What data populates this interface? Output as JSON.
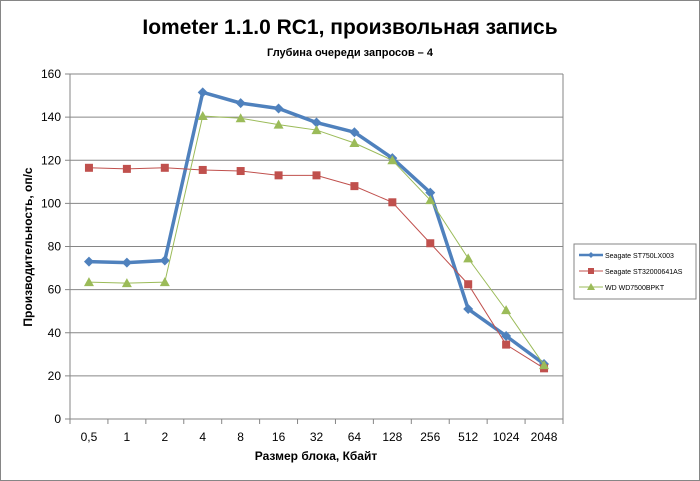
{
  "chart_data": {
    "type": "line",
    "title": "Iometer 1.1.0 RC1, произвольная запись",
    "subtitle": "Глубина очереди запросов – 4",
    "xlabel": "Размер блока, Кбайт",
    "ylabel": "Производительность, оп/с",
    "categories": [
      "0,5",
      "1",
      "2",
      "4",
      "8",
      "16",
      "32",
      "64",
      "128",
      "256",
      "512",
      "1024",
      "2048"
    ],
    "ylim": [
      0,
      160
    ],
    "yticks": [
      0,
      20,
      40,
      60,
      80,
      100,
      120,
      140,
      160
    ],
    "grid": true,
    "legend_position": "right",
    "series": [
      {
        "name": "Seagate ST750LX003",
        "color": "#4F81BD",
        "marker": "diamond",
        "values": [
          73,
          72.5,
          73.5,
          151.5,
          146.5,
          144,
          137.5,
          133,
          121,
          105,
          51,
          38.5,
          25.5
        ]
      },
      {
        "name": "Seagate ST32000641AS",
        "color": "#C0504D",
        "marker": "square",
        "values": [
          116.5,
          116,
          116.5,
          115.5,
          115,
          113,
          113,
          108,
          100.5,
          81.5,
          62.5,
          34.5,
          23.5
        ]
      },
      {
        "name": "WD WD7500BPKT",
        "color": "#9BBB59",
        "marker": "triangle",
        "values": [
          63.5,
          63,
          63.5,
          140.5,
          139.5,
          136.5,
          134,
          128,
          120,
          101.5,
          74.5,
          50.5,
          25
        ]
      }
    ]
  }
}
